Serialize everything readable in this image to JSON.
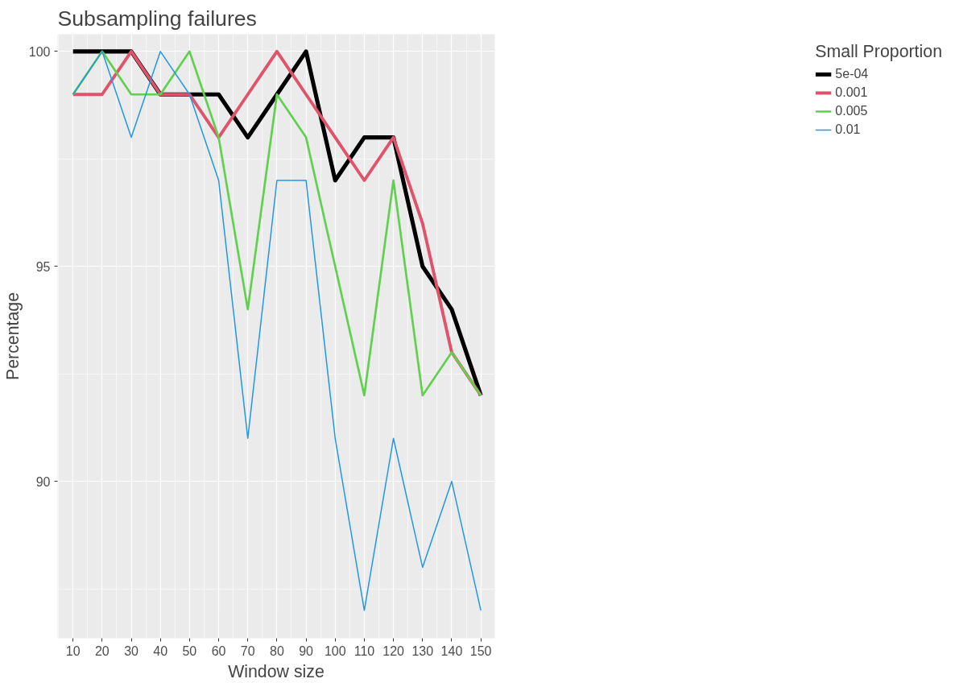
{
  "chart_data": {
    "type": "line",
    "title": "Subsampling failures",
    "xlabel": "Window size",
    "ylabel": "Percentage",
    "legend_title": "Small Proportion",
    "x": [
      10,
      20,
      30,
      40,
      50,
      60,
      70,
      80,
      90,
      100,
      110,
      120,
      130,
      140,
      150
    ],
    "series": [
      {
        "name": "5e-04",
        "color": "#000000",
        "values": [
          100,
          100,
          100,
          99,
          99,
          99,
          98,
          99,
          100,
          97,
          98,
          98,
          95,
          94,
          92
        ]
      },
      {
        "name": "0.001",
        "color": "#df536b",
        "values": [
          99,
          99,
          100,
          99,
          99,
          98,
          99,
          100,
          99,
          98,
          97,
          98,
          96,
          93,
          92
        ]
      },
      {
        "name": "0.005",
        "color": "#61d04f",
        "values": [
          99,
          100,
          99,
          99,
          100,
          98,
          94,
          99,
          98,
          95,
          92,
          97,
          92,
          93,
          92
        ]
      },
      {
        "name": "0.01",
        "color": "#2297e6",
        "values": [
          99,
          100,
          98,
          100,
          99,
          97,
          91,
          97,
          97,
          91,
          87,
          91,
          88,
          90,
          87
        ]
      }
    ],
    "xlim": [
      4.7,
      154.8
    ],
    "ylim": [
      86.35,
      100.4
    ],
    "xticks": [
      10,
      20,
      30,
      40,
      50,
      60,
      70,
      80,
      90,
      100,
      110,
      120,
      130,
      140,
      150
    ],
    "yticks": [
      90,
      95,
      100
    ],
    "grid": true,
    "legend": "right",
    "line_style": "solid"
  }
}
